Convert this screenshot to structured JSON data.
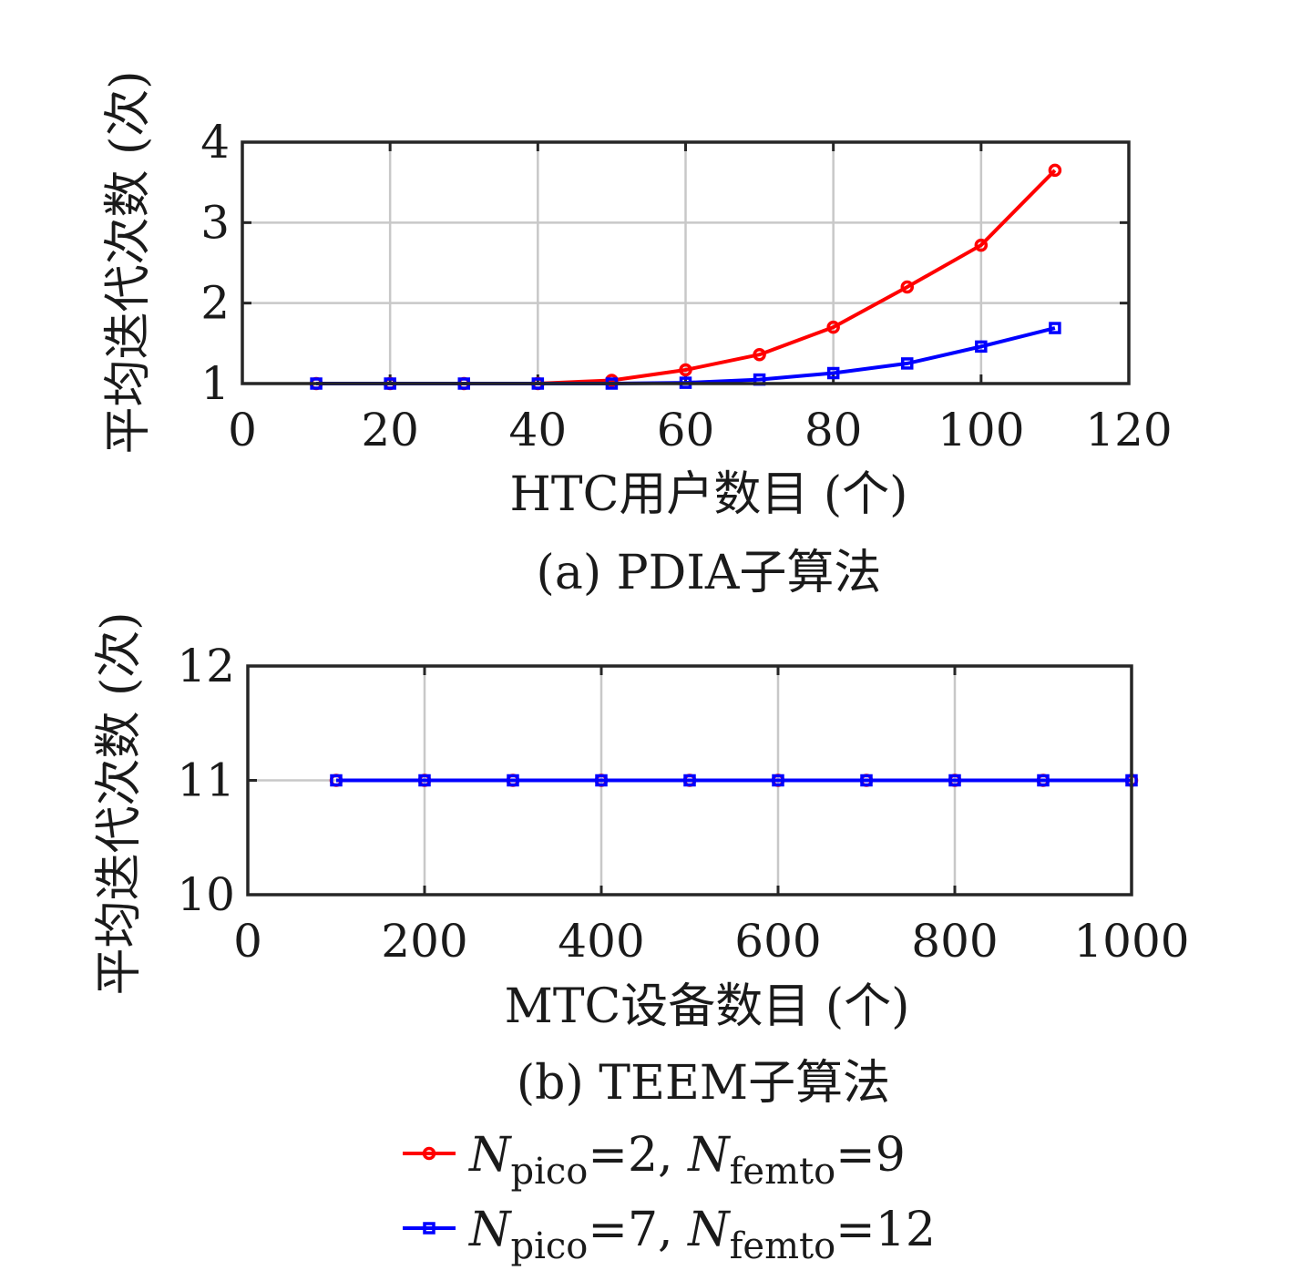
{
  "chart_data": [
    {
      "type": "line",
      "caption": "(a) PDIA子算法",
      "xlabel": "HTC用户数目 (个)",
      "ylabel": "平均迭代次数 (次)",
      "xlim": [
        0,
        120
      ],
      "ylim": [
        1,
        4
      ],
      "xticks": [
        0,
        20,
        40,
        60,
        80,
        100,
        120
      ],
      "yticks": [
        1,
        2,
        3,
        4
      ],
      "grid": true,
      "x": [
        10,
        20,
        30,
        40,
        50,
        60,
        70,
        80,
        90,
        100,
        110
      ],
      "series": [
        {
          "name": "Npico=2, Nfemto=9",
          "color": "#ff0000",
          "marker": "circle",
          "values": [
            1.0,
            1.0,
            1.0,
            1.0,
            1.04,
            1.17,
            1.36,
            1.7,
            2.2,
            2.72,
            3.65
          ]
        },
        {
          "name": "Npico=7, Nfemto=12",
          "color": "#0000ff",
          "marker": "square",
          "values": [
            1.0,
            1.0,
            1.0,
            1.0,
            1.0,
            1.01,
            1.05,
            1.13,
            1.25,
            1.46,
            1.69
          ]
        }
      ]
    },
    {
      "type": "line",
      "caption": "(b) TEEM子算法",
      "xlabel": "MTC设备数目 (个)",
      "ylabel": "平均迭代次数 (次)",
      "xlim": [
        0,
        1000
      ],
      "ylim": [
        10,
        12
      ],
      "xticks": [
        0,
        200,
        400,
        600,
        800,
        1000
      ],
      "yticks": [
        10,
        11,
        12
      ],
      "grid": true,
      "x": [
        100,
        200,
        300,
        400,
        500,
        600,
        700,
        800,
        900,
        1000
      ],
      "series": [
        {
          "name": "Npico=2, Nfemto=9",
          "color": "#ff0000",
          "marker": "circle",
          "values": [
            11,
            11,
            11,
            11,
            11,
            11,
            11,
            11,
            11,
            11
          ]
        },
        {
          "name": "Npico=7, Nfemto=12",
          "color": "#0000ff",
          "marker": "square",
          "values": [
            11,
            11,
            11,
            11,
            11,
            11,
            11,
            11,
            11,
            11
          ]
        }
      ]
    }
  ],
  "legend": {
    "placement": "bottom-center",
    "items": [
      {
        "symbol": "N",
        "sub1": "pico",
        "eq1": "=2, ",
        "symbol2": "N",
        "sub2": "femto",
        "eq2": "=9",
        "color": "#ff0000",
        "marker": "circle"
      },
      {
        "symbol": "N",
        "sub1": "pico",
        "eq1": "=7, ",
        "symbol2": "N",
        "sub2": "femto",
        "eq2": "=12",
        "color": "#0000ff",
        "marker": "square"
      }
    ]
  }
}
